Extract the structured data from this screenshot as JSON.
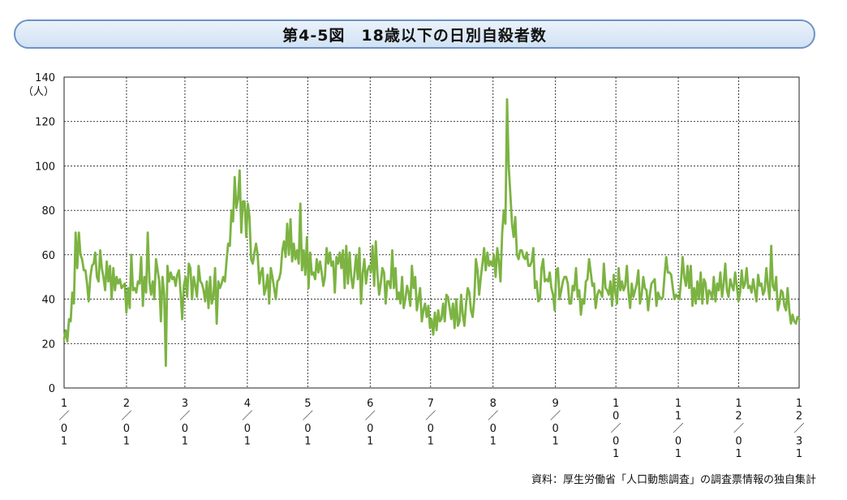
{
  "title": "第4-5図　18歳以下の日別自殺者数",
  "source": "資料：厚生労働省「人口動態調査」の調査票情報の独自集計",
  "chart_data": {
    "type": "line",
    "ylabel": "（人）",
    "ylim": [
      0,
      140
    ],
    "yticks": [
      0,
      20,
      40,
      60,
      80,
      100,
      120,
      140
    ],
    "xlim": [
      1,
      366
    ],
    "x_ticks": [
      {
        "label": "1/01",
        "day": 1
      },
      {
        "label": "2/01",
        "day": 32
      },
      {
        "label": "3/01",
        "day": 61
      },
      {
        "label": "4/01",
        "day": 92
      },
      {
        "label": "5/01",
        "day": 122
      },
      {
        "label": "6/01",
        "day": 153
      },
      {
        "label": "7/01",
        "day": 183
      },
      {
        "label": "8/01",
        "day": 214
      },
      {
        "label": "9/01",
        "day": 245
      },
      {
        "label": "10/01",
        "day": 275
      },
      {
        "label": "11/01",
        "day": 306
      },
      {
        "label": "12/01",
        "day": 336
      },
      {
        "label": "12/31",
        "day": 366
      }
    ],
    "grid": true,
    "line_color": "#7cb342",
    "series": [
      {
        "values": [
          22,
          26,
          21,
          31,
          30,
          43,
          38,
          70,
          54,
          70,
          60,
          58,
          53,
          53,
          47,
          39,
          50,
          55,
          56,
          61,
          50,
          48,
          62,
          54,
          50,
          44,
          57,
          48,
          55,
          40,
          54,
          44,
          50,
          47,
          49,
          45,
          46,
          47,
          34,
          45,
          36,
          60,
          44,
          45,
          43,
          48,
          47,
          59,
          37,
          50,
          43,
          70,
          48,
          42,
          48,
          40,
          58,
          53,
          48,
          30,
          50,
          42,
          10,
          55,
          48,
          52,
          49,
          50,
          46,
          51,
          53,
          43,
          31,
          46,
          50,
          41,
          56,
          54,
          40,
          50,
          46,
          41,
          55,
          48,
          47,
          44,
          39,
          48,
          36,
          50,
          38,
          41,
          54,
          29,
          48,
          45,
          47,
          50,
          48,
          57,
          65,
          64,
          80,
          75,
          95,
          81,
          85,
          98,
          70,
          84,
          84,
          68,
          83,
          77,
          58,
          56,
          61,
          65,
          60,
          47,
          52,
          54,
          42,
          45,
          51,
          38,
          54,
          50,
          45,
          40,
          48,
          49,
          52,
          62,
          66,
          59,
          74,
          60,
          76,
          57,
          65,
          58,
          62,
          56,
          83,
          53,
          62,
          51,
          68,
          45,
          61,
          51,
          52,
          49,
          58,
          52,
          57,
          52,
          46,
          50,
          63,
          56,
          61,
          55,
          57,
          43,
          59,
          56,
          61,
          54,
          62,
          45,
          64,
          47,
          61,
          50,
          45,
          52,
          60,
          49,
          63,
          38,
          52,
          58,
          47,
          53,
          55,
          52,
          64,
          46,
          66,
          51,
          42,
          47,
          54,
          52,
          38,
          48,
          48,
          45,
          62,
          45,
          54,
          40,
          43,
          38,
          50,
          36,
          40,
          46,
          43,
          37,
          55,
          45,
          50,
          35,
          40,
          45,
          30,
          35,
          38,
          32,
          37,
          27,
          31,
          24,
          34,
          26,
          35,
          30,
          31,
          38,
          30,
          42,
          41,
          36,
          31,
          38,
          27,
          40,
          28,
          30,
          42,
          33,
          28,
          38,
          45,
          43,
          35,
          32,
          40,
          58,
          53,
          42,
          50,
          56,
          63,
          53,
          61,
          55,
          57,
          55,
          60,
          50,
          63,
          57,
          48,
          70,
          80,
          74,
          130,
          100,
          87,
          74,
          68,
          77,
          60,
          58,
          62,
          62,
          59,
          58,
          61,
          55,
          55,
          57,
          63,
          45,
          48,
          39,
          40,
          54,
          58,
          48,
          49,
          48,
          52,
          45,
          42,
          35,
          53,
          54,
          40,
          44,
          48,
          50,
          50,
          47,
          38,
          38,
          46,
          44,
          54,
          41,
          44,
          33,
          40,
          38,
          48,
          49,
          58,
          52,
          46,
          47,
          36,
          42,
          44,
          43,
          41,
          56,
          45,
          44,
          42,
          48,
          37,
          51,
          43,
          38,
          54,
          44,
          48,
          44,
          46,
          55,
          43,
          36,
          47,
          41,
          44,
          47,
          53,
          38,
          42,
          50,
          45,
          44,
          35,
          42,
          47,
          48,
          49,
          37,
          43,
          41,
          40,
          41,
          51,
          59,
          52,
          52,
          51,
          45,
          40,
          42,
          41,
          40,
          48,
          59,
          50,
          46,
          55,
          45,
          55,
          37,
          45,
          38,
          48,
          40,
          52,
          38,
          49,
          47,
          38,
          44,
          43,
          40,
          50,
          39,
          47,
          44,
          52,
          41,
          47,
          56,
          44,
          41,
          49,
          46,
          44,
          52,
          46,
          39,
          43,
          53,
          45,
          47,
          54,
          45,
          46,
          43,
          49,
          44,
          39,
          51,
          46,
          47,
          42,
          44,
          54,
          46,
          40,
          64,
          46,
          44,
          50,
          35,
          38,
          44,
          43,
          37,
          35,
          45,
          35,
          29,
          33,
          30,
          29,
          32,
          31
        ]
      }
    ]
  }
}
